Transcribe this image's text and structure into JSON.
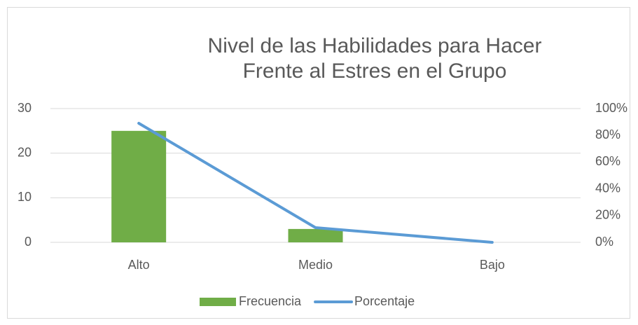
{
  "chart_data": {
    "type": "bar",
    "title": "Nivel de las Habilidades para Hacer Frente al Estres en el Grupo",
    "categories": [
      "Alto",
      "Medio",
      "Bajo"
    ],
    "series": [
      {
        "name": "Frecuencia",
        "type": "bar",
        "color": "#70ad47",
        "values": [
          25,
          3,
          0
        ]
      },
      {
        "name": "Porcentaje",
        "type": "line",
        "axis": "y2",
        "color": "#5b9bd5",
        "values": [
          89,
          11,
          0
        ]
      }
    ],
    "ylim": [
      0,
      30
    ],
    "yticks": [
      0,
      10,
      20,
      30
    ],
    "y2lim": [
      0,
      100
    ],
    "y2ticks": [
      {
        "value": 0,
        "label": "0%"
      },
      {
        "value": 20,
        "label": "20%"
      },
      {
        "value": 40,
        "label": "40%"
      },
      {
        "value": 60,
        "label": "60%"
      },
      {
        "value": 80,
        "label": "80%"
      },
      {
        "value": 100,
        "label": "100%"
      }
    ],
    "grid": true,
    "legend": "bottom"
  }
}
